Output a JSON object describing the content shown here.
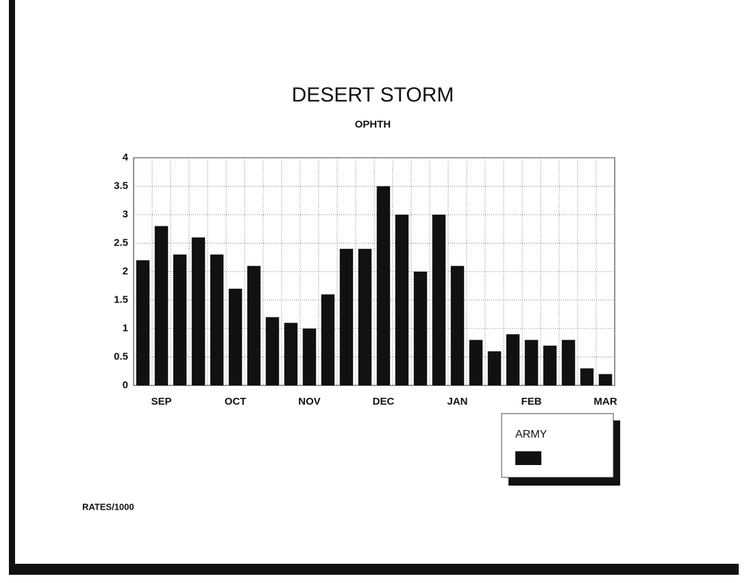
{
  "chart_data": {
    "type": "bar",
    "title": "DESERT STORM",
    "subtitle": "OPHTH",
    "categories": [
      null,
      "SEP",
      null,
      null,
      null,
      "OCT",
      null,
      null,
      null,
      "NOV",
      null,
      null,
      null,
      "DEC",
      null,
      null,
      null,
      "JAN",
      null,
      null,
      null,
      "FEB",
      null,
      null,
      null,
      "MAR"
    ],
    "series": [
      {
        "name": "ARMY",
        "color": "#111111",
        "values": [
          2.2,
          2.8,
          2.3,
          2.6,
          2.3,
          1.7,
          2.1,
          1.2,
          1.1,
          1.0,
          1.6,
          2.4,
          2.4,
          3.5,
          3.0,
          2.0,
          3.0,
          2.1,
          0.8,
          0.6,
          0.9,
          0.8,
          0.7,
          0.8,
          0.3,
          0.2
        ]
      }
    ],
    "ylim": [
      0,
      4
    ],
    "yticks": [
      0,
      0.5,
      1,
      1.5,
      2,
      2.5,
      3,
      3.5,
      4
    ],
    "grid": true,
    "legend": "bottom-right",
    "annotation": "RATES/1000"
  }
}
